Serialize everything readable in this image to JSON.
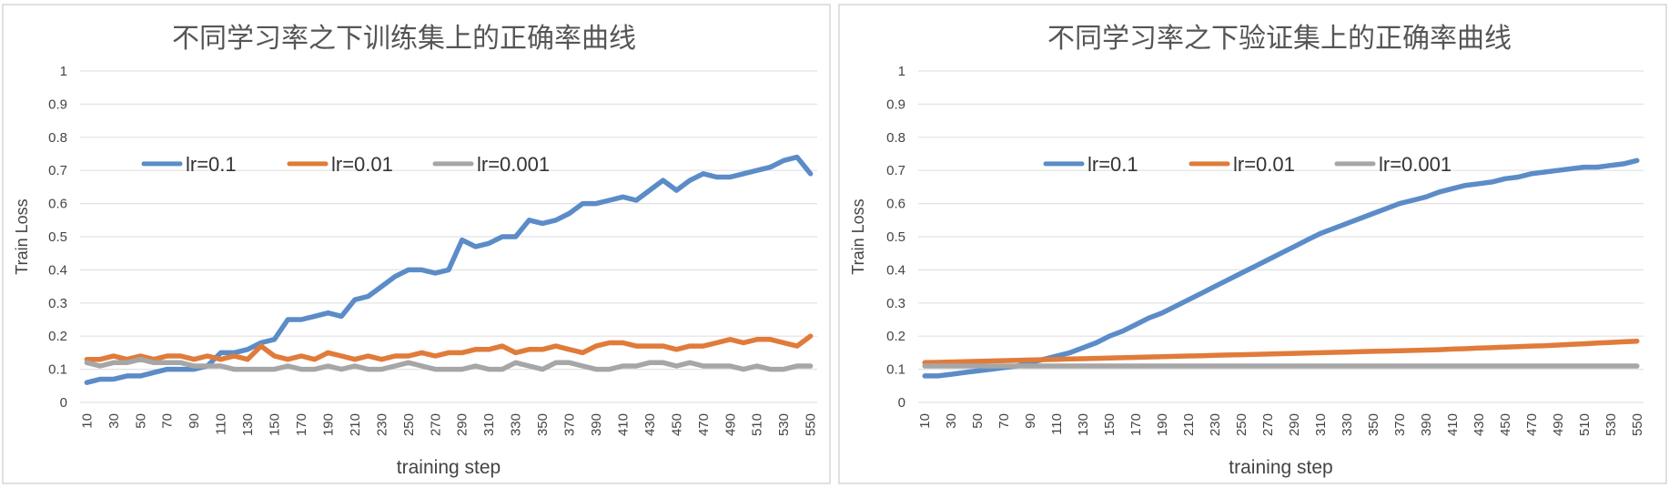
{
  "colors": {
    "lr_0_1": "#5B8CC8",
    "lr_0_01": "#E07B3A",
    "lr_0_001": "#A6A6A6",
    "grid": "#E2E2E2",
    "border": "#D6D6D6",
    "text": "#444444"
  },
  "chart_data": [
    {
      "type": "line",
      "title": "不同学习率之下训练集上的正确率曲线",
      "xlabel": "training step",
      "ylabel": "Train Loss",
      "ylim": [
        0,
        1
      ],
      "yticks": [
        "0",
        "0.1",
        "0.2",
        "0.3",
        "0.4",
        "0.5",
        "0.6",
        "0.7",
        "0.8",
        "0.9",
        "1"
      ],
      "grid": true,
      "legend": "top-left",
      "categories": [
        "10",
        "20",
        "30",
        "40",
        "50",
        "60",
        "70",
        "80",
        "90",
        "100",
        "110",
        "120",
        "130",
        "140",
        "150",
        "160",
        "170",
        "180",
        "190",
        "200",
        "210",
        "220",
        "230",
        "240",
        "250",
        "260",
        "270",
        "280",
        "290",
        "300",
        "310",
        "320",
        "330",
        "340",
        "350",
        "360",
        "370",
        "380",
        "390",
        "400",
        "410",
        "420",
        "430",
        "440",
        "450",
        "460",
        "470",
        "480",
        "490",
        "500",
        "510",
        "520",
        "530",
        "540",
        "550"
      ],
      "xticks": [
        "10",
        "30",
        "50",
        "70",
        "90",
        "110",
        "130",
        "150",
        "170",
        "190",
        "210",
        "230",
        "250",
        "270",
        "290",
        "310",
        "330",
        "350",
        "370",
        "390",
        "410",
        "430",
        "450",
        "470",
        "490",
        "510",
        "530",
        "550"
      ],
      "series": [
        {
          "name": "lr=0.1",
          "values": [
            0.06,
            0.07,
            0.07,
            0.08,
            0.08,
            0.09,
            0.1,
            0.1,
            0.1,
            0.11,
            0.15,
            0.15,
            0.16,
            0.18,
            0.19,
            0.25,
            0.25,
            0.26,
            0.27,
            0.26,
            0.31,
            0.32,
            0.35,
            0.38,
            0.4,
            0.4,
            0.39,
            0.4,
            0.49,
            0.47,
            0.48,
            0.5,
            0.5,
            0.55,
            0.54,
            0.55,
            0.57,
            0.6,
            0.6,
            0.61,
            0.62,
            0.61,
            0.64,
            0.67,
            0.64,
            0.67,
            0.69,
            0.68,
            0.68,
            0.69,
            0.7,
            0.71,
            0.73,
            0.74,
            0.69
          ]
        },
        {
          "name": "lr=0.01",
          "values": [
            0.13,
            0.13,
            0.14,
            0.13,
            0.14,
            0.13,
            0.14,
            0.14,
            0.13,
            0.14,
            0.13,
            0.14,
            0.13,
            0.17,
            0.14,
            0.13,
            0.14,
            0.13,
            0.15,
            0.14,
            0.13,
            0.14,
            0.13,
            0.14,
            0.14,
            0.15,
            0.14,
            0.15,
            0.15,
            0.16,
            0.16,
            0.17,
            0.15,
            0.16,
            0.16,
            0.17,
            0.16,
            0.15,
            0.17,
            0.18,
            0.18,
            0.17,
            0.17,
            0.17,
            0.16,
            0.17,
            0.17,
            0.18,
            0.19,
            0.18,
            0.19,
            0.19,
            0.18,
            0.17,
            0.2
          ]
        },
        {
          "name": "lr=0.001",
          "values": [
            0.12,
            0.11,
            0.12,
            0.12,
            0.13,
            0.12,
            0.12,
            0.12,
            0.11,
            0.11,
            0.11,
            0.1,
            0.1,
            0.1,
            0.1,
            0.11,
            0.1,
            0.1,
            0.11,
            0.1,
            0.11,
            0.1,
            0.1,
            0.11,
            0.12,
            0.11,
            0.1,
            0.1,
            0.1,
            0.11,
            0.1,
            0.1,
            0.12,
            0.11,
            0.1,
            0.12,
            0.12,
            0.11,
            0.1,
            0.1,
            0.11,
            0.11,
            0.12,
            0.12,
            0.11,
            0.12,
            0.11,
            0.11,
            0.11,
            0.1,
            0.11,
            0.1,
            0.1,
            0.11,
            0.11
          ]
        }
      ]
    },
    {
      "type": "line",
      "title": "不同学习率之下验证集上的正确率曲线",
      "xlabel": "training step",
      "ylabel": "Train Loss",
      "ylim": [
        0,
        1
      ],
      "yticks": [
        "0",
        "0.1",
        "0.2",
        "0.3",
        "0.4",
        "0.5",
        "0.6",
        "0.7",
        "0.8",
        "0.9",
        "1"
      ],
      "grid": true,
      "legend": "top-center",
      "categories": [
        "10",
        "20",
        "30",
        "40",
        "50",
        "60",
        "70",
        "80",
        "90",
        "100",
        "110",
        "120",
        "130",
        "140",
        "150",
        "160",
        "170",
        "180",
        "190",
        "200",
        "210",
        "220",
        "230",
        "240",
        "250",
        "260",
        "270",
        "280",
        "290",
        "300",
        "310",
        "320",
        "330",
        "340",
        "350",
        "360",
        "370",
        "380",
        "390",
        "400",
        "410",
        "420",
        "430",
        "440",
        "450",
        "460",
        "470",
        "480",
        "490",
        "500",
        "510",
        "520",
        "530",
        "540",
        "550"
      ],
      "xticks": [
        "10",
        "30",
        "50",
        "70",
        "90",
        "110",
        "130",
        "150",
        "170",
        "190",
        "210",
        "230",
        "250",
        "270",
        "290",
        "310",
        "330",
        "350",
        "370",
        "390",
        "410",
        "430",
        "450",
        "470",
        "490",
        "510",
        "530",
        "550"
      ],
      "series": [
        {
          "name": "lr=0.1",
          "values": [
            0.08,
            0.08,
            0.085,
            0.09,
            0.095,
            0.1,
            0.105,
            0.11,
            0.12,
            0.13,
            0.14,
            0.15,
            0.165,
            0.18,
            0.2,
            0.215,
            0.235,
            0.255,
            0.27,
            0.29,
            0.31,
            0.33,
            0.35,
            0.37,
            0.39,
            0.41,
            0.43,
            0.45,
            0.47,
            0.49,
            0.51,
            0.525,
            0.54,
            0.555,
            0.57,
            0.585,
            0.6,
            0.61,
            0.62,
            0.635,
            0.645,
            0.655,
            0.66,
            0.665,
            0.675,
            0.68,
            0.69,
            0.695,
            0.7,
            0.705,
            0.71,
            0.71,
            0.715,
            0.72,
            0.73
          ]
        },
        {
          "name": "lr=0.01",
          "values": [
            0.12,
            0.121,
            0.122,
            0.123,
            0.124,
            0.125,
            0.126,
            0.127,
            0.128,
            0.129,
            0.13,
            0.131,
            0.132,
            0.133,
            0.134,
            0.135,
            0.136,
            0.137,
            0.138,
            0.139,
            0.14,
            0.141,
            0.142,
            0.143,
            0.144,
            0.145,
            0.146,
            0.147,
            0.148,
            0.149,
            0.15,
            0.151,
            0.152,
            0.153,
            0.154,
            0.155,
            0.156,
            0.157,
            0.158,
            0.159,
            0.161,
            0.162,
            0.164,
            0.165,
            0.167,
            0.168,
            0.17,
            0.171,
            0.173,
            0.175,
            0.177,
            0.179,
            0.181,
            0.183,
            0.185
          ]
        },
        {
          "name": "lr=0.001",
          "values": [
            0.11,
            0.11,
            0.11,
            0.11,
            0.11,
            0.11,
            0.11,
            0.11,
            0.11,
            0.11,
            0.11,
            0.11,
            0.11,
            0.11,
            0.11,
            0.11,
            0.11,
            0.11,
            0.11,
            0.11,
            0.11,
            0.11,
            0.11,
            0.11,
            0.11,
            0.11,
            0.11,
            0.11,
            0.11,
            0.11,
            0.11,
            0.11,
            0.11,
            0.11,
            0.11,
            0.11,
            0.11,
            0.11,
            0.11,
            0.11,
            0.11,
            0.11,
            0.11,
            0.11,
            0.11,
            0.11,
            0.11,
            0.11,
            0.11,
            0.11,
            0.11,
            0.11,
            0.11,
            0.11,
            0.11
          ]
        }
      ]
    }
  ]
}
